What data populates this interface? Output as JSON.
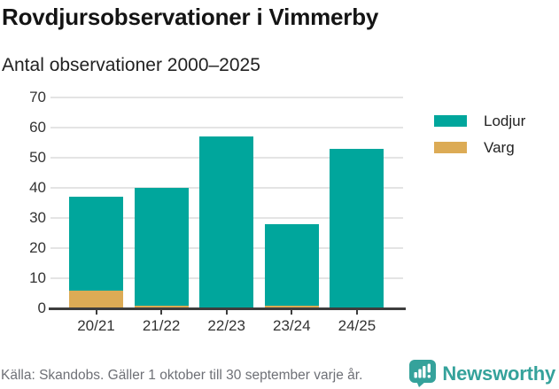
{
  "header": {
    "title": "Rovdjursobservationer i Vimmerby",
    "subtitle": "Antal observationer 2000–2025"
  },
  "chart_data": {
    "type": "bar",
    "stacked": true,
    "title": "Rovdjursobservationer i Vimmerby",
    "subtitle": "Antal observationer 2000–2025",
    "categories": [
      "20/21",
      "21/22",
      "22/23",
      "23/24",
      "24/25"
    ],
    "series": [
      {
        "name": "Varg",
        "color": "#dcab55",
        "values": [
          6,
          1,
          0,
          1,
          0
        ]
      },
      {
        "name": "Lodjur",
        "color": "#00a69c",
        "values": [
          31,
          39,
          57,
          27,
          53
        ]
      }
    ],
    "stack_totals": [
      37,
      40,
      57,
      28,
      53
    ],
    "xlabel": "",
    "ylabel": "",
    "ylim": [
      0,
      70
    ],
    "yticks": [
      0,
      10,
      20,
      30,
      40,
      50,
      60,
      70
    ],
    "grid": "horizontal",
    "legend_position": "right",
    "legend_order": [
      "Lodjur",
      "Varg"
    ]
  },
  "legend": {
    "items": [
      {
        "label": "Lodjur",
        "color": "#00a69c"
      },
      {
        "label": "Varg",
        "color": "#dcab55"
      }
    ]
  },
  "footer": {
    "source": "Källa: Skandobs. Gäller 1 oktober till 30 september varje år.",
    "brand": "Newsworthy",
    "brand_color": "#35a29b"
  },
  "colors": {
    "lodjur": "#00a69c",
    "varg": "#dcab55",
    "grid": "#e4e4e4",
    "axis": "#3d3d3d",
    "text": "#333333",
    "muted": "#6e7076"
  }
}
